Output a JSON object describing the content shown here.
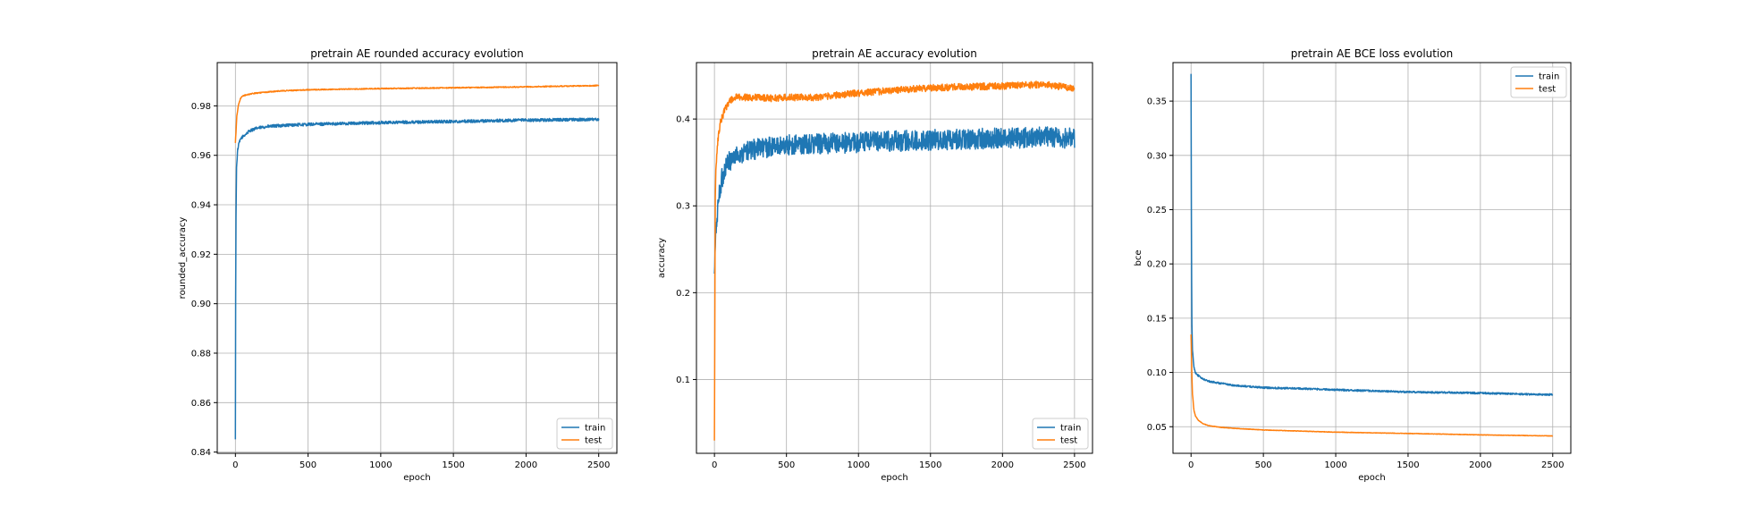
{
  "colors": {
    "train": "#1f77b4",
    "test": "#ff7f0e",
    "grid": "#b0b0b0",
    "axis": "#000000"
  },
  "chart_data": [
    {
      "type": "line",
      "title": "pretrain AE rounded accuracy evolution",
      "xlabel": "epoch",
      "ylabel": "rounded_accuracy",
      "xlim": [
        -125,
        2625
      ],
      "ylim": [
        0.8395,
        0.9975
      ],
      "xticks": [
        0,
        500,
        1000,
        1500,
        2000,
        2500
      ],
      "yticks": [
        0.84,
        0.86,
        0.88,
        0.9,
        0.92,
        0.94,
        0.96,
        0.98
      ],
      "ytick_labels": [
        "0.84",
        "0.86",
        "0.88",
        "0.90",
        "0.92",
        "0.94",
        "0.96",
        "0.98"
      ],
      "grid": true,
      "legend": "lower right",
      "noise": [
        0.0006,
        0.0002
      ],
      "series": [
        {
          "name": "train",
          "x": [
            0,
            3,
            8,
            15,
            25,
            40,
            60,
            100,
            150,
            200,
            300,
            400,
            500,
            700,
            1000,
            1300,
            1600,
            2000,
            2300,
            2500
          ],
          "y": [
            0.845,
            0.93,
            0.955,
            0.962,
            0.965,
            0.967,
            0.968,
            0.97,
            0.971,
            0.9715,
            0.972,
            0.9723,
            0.9725,
            0.9728,
            0.9732,
            0.9735,
            0.9738,
            0.9742,
            0.9744,
            0.9745
          ]
        },
        {
          "name": "test",
          "x": [
            0,
            10,
            20,
            35,
            50,
            80,
            120,
            200,
            300,
            500,
            800,
            1000,
            1500,
            2000,
            2300,
            2500
          ],
          "y": [
            0.965,
            0.976,
            0.98,
            0.983,
            0.984,
            0.9845,
            0.985,
            0.9855,
            0.986,
            0.9865,
            0.9868,
            0.987,
            0.9873,
            0.9877,
            0.988,
            0.9882
          ]
        }
      ]
    },
    {
      "type": "line",
      "title": "pretrain AE accuracy evolution",
      "xlabel": "epoch",
      "ylabel": "accuracy",
      "xlim": [
        -125,
        2625
      ],
      "ylim": [
        0.015,
        0.465
      ],
      "xticks": [
        0,
        500,
        1000,
        1500,
        2000,
        2500
      ],
      "yticks": [
        0.1,
        0.2,
        0.3,
        0.4
      ],
      "ytick_labels": [
        "0.1",
        "0.2",
        "0.3",
        "0.4"
      ],
      "grid": true,
      "legend": "lower right",
      "noise": [
        0.012,
        0.004
      ],
      "series": [
        {
          "name": "train",
          "x": [
            0,
            5,
            10,
            20,
            30,
            50,
            80,
            120,
            200,
            300,
            500,
            800,
            1000,
            1500,
            2000,
            2300,
            2500
          ],
          "y": [
            0.22,
            0.25,
            0.27,
            0.29,
            0.31,
            0.33,
            0.345,
            0.355,
            0.362,
            0.366,
            0.37,
            0.372,
            0.373,
            0.376,
            0.378,
            0.379,
            0.378
          ]
        },
        {
          "name": "test",
          "x": [
            0,
            5,
            10,
            20,
            40,
            70,
            100,
            150,
            200,
            300,
            400,
            500,
            700,
            1000,
            1500,
            2000,
            2300,
            2500
          ],
          "y": [
            0.03,
            0.3,
            0.34,
            0.37,
            0.395,
            0.41,
            0.42,
            0.425,
            0.425,
            0.425,
            0.424,
            0.425,
            0.425,
            0.43,
            0.436,
            0.438,
            0.44,
            0.435
          ]
        }
      ]
    },
    {
      "type": "line",
      "title": "pretrain AE BCE loss evolution",
      "xlabel": "epoch",
      "ylabel": "bce",
      "xlim": [
        -125,
        2625
      ],
      "ylim": [
        0.0255,
        0.3855
      ],
      "xticks": [
        0,
        500,
        1000,
        1500,
        2000,
        2500
      ],
      "yticks": [
        0.05,
        0.1,
        0.15,
        0.2,
        0.25,
        0.3,
        0.35
      ],
      "ytick_labels": [
        "0.05",
        "0.10",
        "0.15",
        "0.20",
        "0.25",
        "0.30",
        "0.35"
      ],
      "grid": true,
      "legend": "upper right",
      "noise": [
        0.0008,
        0.0002
      ],
      "series": [
        {
          "name": "train",
          "x": [
            0,
            2,
            5,
            10,
            20,
            30,
            50,
            80,
            120,
            200,
            300,
            500,
            800,
            1000,
            1500,
            2000,
            2300,
            2500
          ],
          "y": [
            0.375,
            0.25,
            0.15,
            0.12,
            0.105,
            0.1,
            0.097,
            0.094,
            0.092,
            0.09,
            0.088,
            0.086,
            0.085,
            0.084,
            0.082,
            0.081,
            0.08,
            0.0795
          ]
        },
        {
          "name": "test",
          "x": [
            0,
            5,
            10,
            20,
            30,
            50,
            80,
            120,
            200,
            300,
            500,
            800,
            1000,
            1500,
            2000,
            2500
          ],
          "y": [
            0.135,
            0.1,
            0.08,
            0.065,
            0.06,
            0.056,
            0.053,
            0.051,
            0.0495,
            0.0485,
            0.047,
            0.0458,
            0.045,
            0.0438,
            0.0425,
            0.0415
          ]
        }
      ]
    }
  ]
}
